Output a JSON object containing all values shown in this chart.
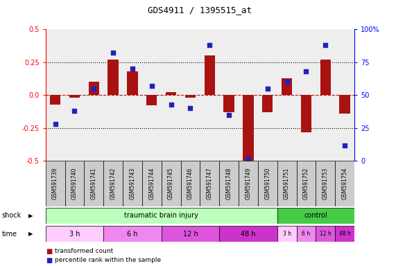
{
  "title": "GDS4911 / 1395515_at",
  "samples": [
    "GSM591739",
    "GSM591740",
    "GSM591741",
    "GSM591742",
    "GSM591743",
    "GSM591744",
    "GSM591745",
    "GSM591746",
    "GSM591747",
    "GSM591748",
    "GSM591749",
    "GSM591750",
    "GSM591751",
    "GSM591752",
    "GSM591753",
    "GSM591754"
  ],
  "transformed_count": [
    -0.07,
    -0.02,
    0.1,
    0.27,
    0.18,
    -0.08,
    0.02,
    -0.02,
    0.3,
    -0.13,
    -0.52,
    -0.13,
    0.13,
    -0.28,
    0.27,
    -0.14
  ],
  "percentile_rank": [
    28,
    38,
    55,
    82,
    70,
    57,
    43,
    40,
    88,
    35,
    2,
    55,
    60,
    68,
    88,
    12
  ],
  "ylim_left": [
    -0.5,
    0.5
  ],
  "ylim_right": [
    0,
    100
  ],
  "yticks_left": [
    -0.5,
    -0.25,
    0.0,
    0.25,
    0.5
  ],
  "yticks_right": [
    0,
    25,
    50,
    75,
    100
  ],
  "bar_color": "#aa1111",
  "dot_color": "#2222bb",
  "shock_groups": [
    {
      "label": "traumatic brain injury",
      "start": 0,
      "end": 12,
      "color": "#bbffbb"
    },
    {
      "label": "control",
      "start": 12,
      "end": 16,
      "color": "#44cc44"
    }
  ],
  "time_groups_tbi": [
    {
      "label": "3 h",
      "start": 0,
      "end": 3,
      "color": "#ffccff"
    },
    {
      "label": "6 h",
      "start": 3,
      "end": 7,
      "color": "#ee88ee"
    },
    {
      "label": "12 h",
      "start": 7,
      "end": 11,
      "color": "#dd55dd"
    },
    {
      "label": "48 h",
      "start": 11,
      "end": 12,
      "color": "#cc33cc"
    }
  ],
  "time_groups_ctrl": [
    {
      "label": "3 h",
      "start": 12,
      "end": 13,
      "color": "#ffccff"
    },
    {
      "label": "6 h",
      "start": 13,
      "end": 14,
      "color": "#ee88ee"
    },
    {
      "label": "12 h",
      "start": 14,
      "end": 15,
      "color": "#dd55dd"
    },
    {
      "label": "48 h",
      "start": 15,
      "end": 16,
      "color": "#cc33cc"
    }
  ],
  "legend_items": [
    {
      "label": "transformed count",
      "color": "#aa1111"
    },
    {
      "label": "percentile rank within the sample",
      "color": "#2222bb"
    }
  ],
  "background_color": "#ffffff"
}
